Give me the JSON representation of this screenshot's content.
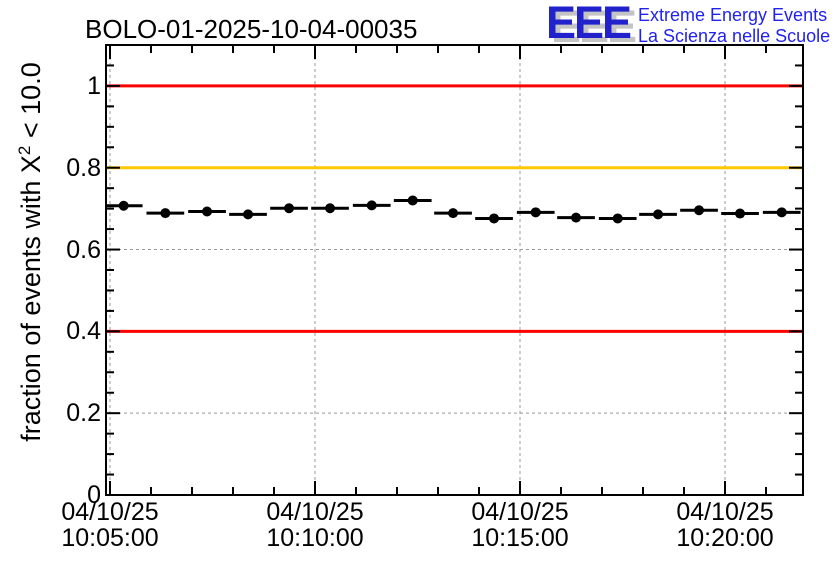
{
  "header": {
    "title": "BOLO-01-2025-10-04-00035",
    "logo": {
      "acronym": "EEE",
      "line1": "Extreme Energy Events",
      "line2": "La Scienza nelle Scuole",
      "color": "#2222CC",
      "text_color": "#2222EE",
      "shadow_color": "#C4C4C4"
    }
  },
  "chart_data": {
    "type": "scatter",
    "title": "BOLO-01-2025-10-04-00035",
    "ylabel": "fraction of events with X^2 < 10.0",
    "ylabel_parts": {
      "prefix": "fraction of events with X",
      "sup": "2",
      "suffix": " < 10.0"
    },
    "xlabel": "",
    "ylim": [
      0,
      1.1
    ],
    "y_minor_step": 0.05,
    "y_ticks": [
      {
        "v": 0,
        "label": "0"
      },
      {
        "v": 0.2,
        "label": "0.2"
      },
      {
        "v": 0.4,
        "label": "0.4"
      },
      {
        "v": 0.6,
        "label": "0.6"
      },
      {
        "v": 0.8,
        "label": "0.8"
      },
      {
        "v": 1.0,
        "label": "1"
      }
    ],
    "x_origin_time": "10:05:00",
    "x_range_minutes": [
      -0.1,
      16.9
    ],
    "x_minor_step_minutes": 1,
    "x_ticks": [
      {
        "t": 0,
        "date": "04/10/25",
        "time": "10:05:00"
      },
      {
        "t": 5,
        "date": "04/10/25",
        "time": "10:10:00"
      },
      {
        "t": 10,
        "date": "04/10/25",
        "time": "10:15:00"
      },
      {
        "t": 15,
        "date": "04/10/25",
        "time": "10:20:00"
      }
    ],
    "grid": {
      "show": true,
      "style": "dotted",
      "color": "#999999"
    },
    "frame_color": "#000000",
    "reference_lines": [
      {
        "value": 1.0,
        "color": "#FF0000"
      },
      {
        "value": 0.8,
        "color": "#FFC800"
      },
      {
        "value": 0.4,
        "color": "#FF0000"
      }
    ],
    "legend": null,
    "series": [
      {
        "name": "fraction_of_events_chi2_lt_10",
        "marker": "filled-circle",
        "color": "#000000",
        "x_half_width_minutes": 0.46,
        "points": [
          {
            "time": "10:05:20",
            "value": 0.707
          },
          {
            "time": "10:06:21",
            "value": 0.689
          },
          {
            "time": "10:07:22",
            "value": 0.693
          },
          {
            "time": "10:08:22",
            "value": 0.686
          },
          {
            "time": "10:09:22",
            "value": 0.701
          },
          {
            "time": "10:10:22",
            "value": 0.701
          },
          {
            "time": "10:11:23",
            "value": 0.708
          },
          {
            "time": "10:12:23",
            "value": 0.72
          },
          {
            "time": "10:13:22",
            "value": 0.689
          },
          {
            "time": "10:14:22",
            "value": 0.676
          },
          {
            "time": "10:15:23",
            "value": 0.691
          },
          {
            "time": "10:16:22",
            "value": 0.678
          },
          {
            "time": "10:17:23",
            "value": 0.676
          },
          {
            "time": "10:18:22",
            "value": 0.686
          },
          {
            "time": "10:19:22",
            "value": 0.696
          },
          {
            "time": "10:20:22",
            "value": 0.688
          },
          {
            "time": "10:21:23",
            "value": 0.691
          }
        ]
      }
    ]
  }
}
